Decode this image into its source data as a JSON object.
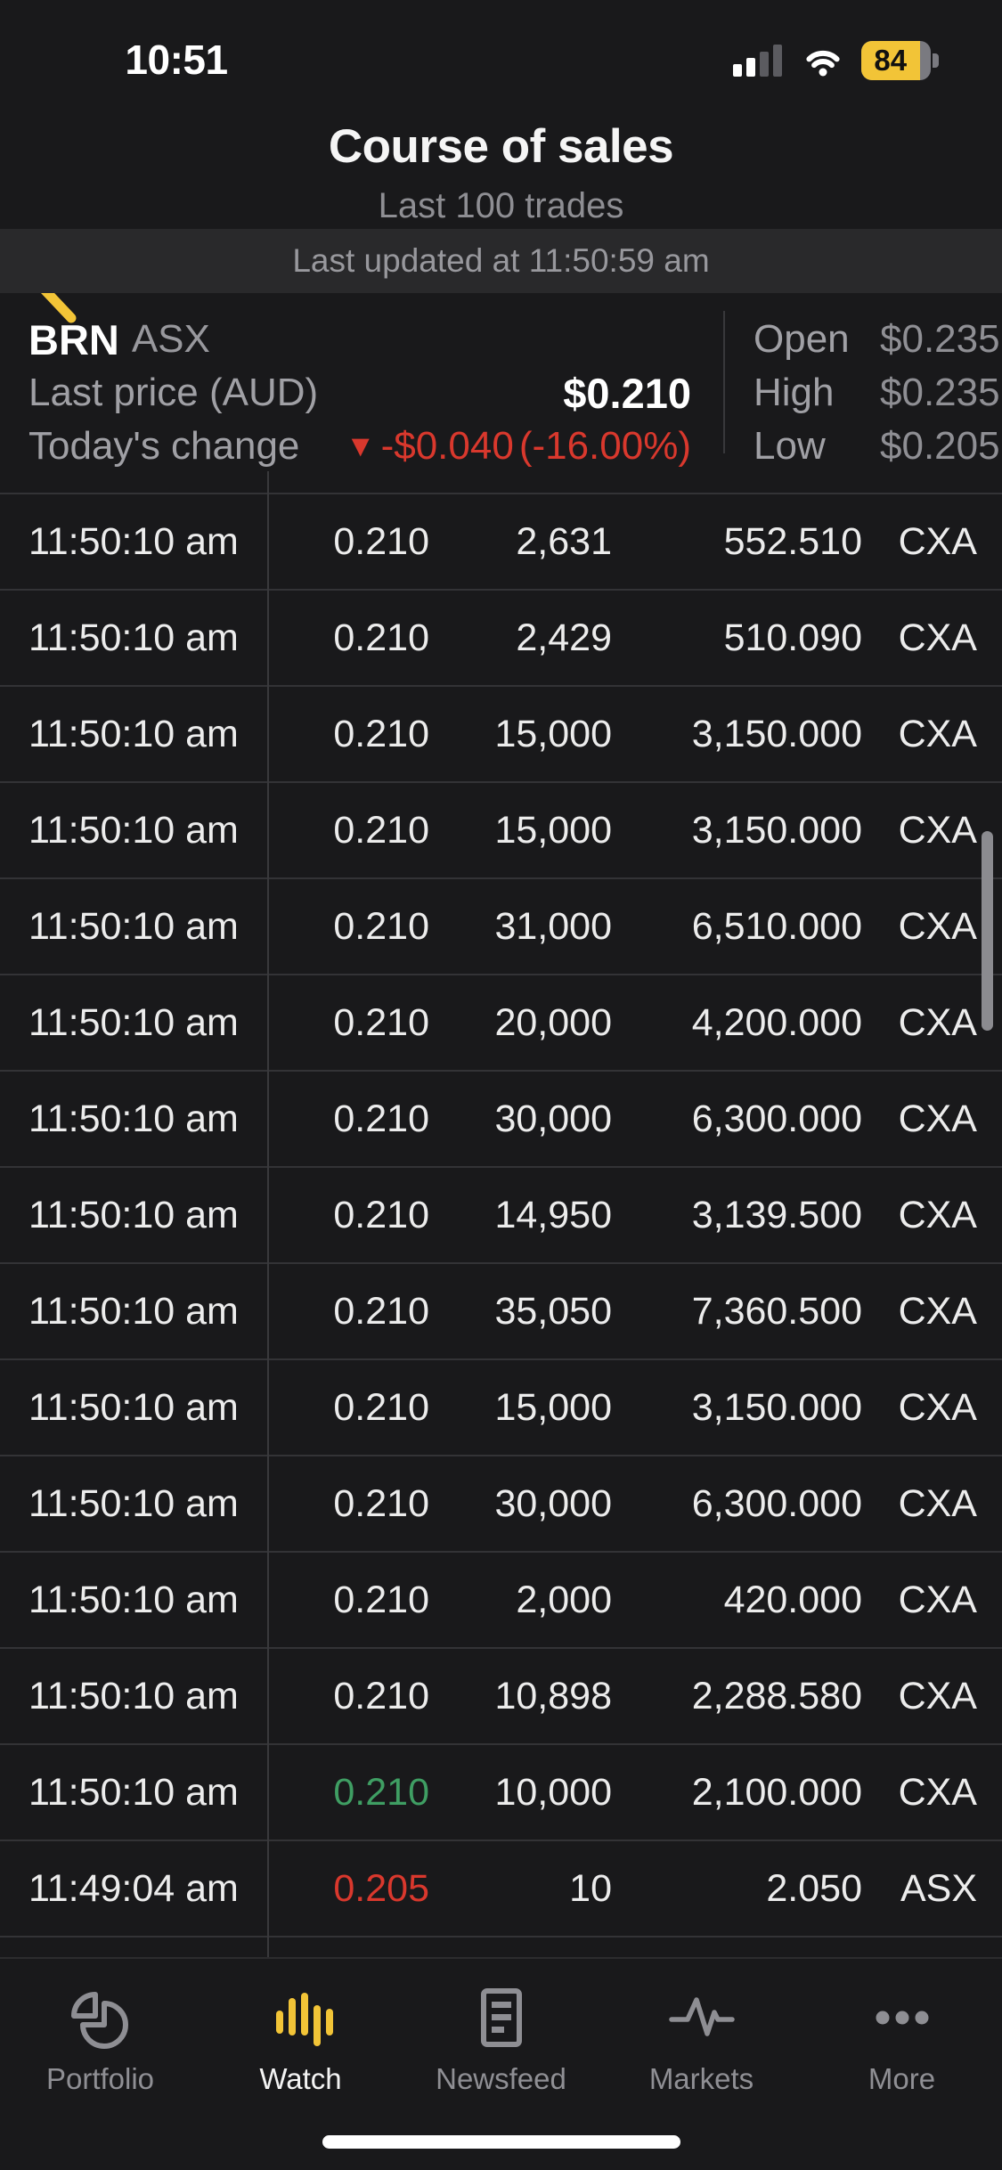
{
  "colors": {
    "accent": "#F2C437",
    "negative": "#D9382D",
    "positive": "#3F9E63",
    "background": "#19191B"
  },
  "status_bar": {
    "time": "10:51",
    "battery_percent": "84"
  },
  "header": {
    "title": "Course of sales",
    "subtitle": "Last 100 trades"
  },
  "updated_bar": {
    "text": "Last updated at 11:50:59 am"
  },
  "quote": {
    "symbol": "BRN",
    "exchange": "ASX",
    "last_price_label": "Last price (AUD)",
    "last_price": "$0.210",
    "change_label": "Today's change",
    "change_arrow": "▼",
    "change_value": "-$0.040",
    "change_pct": "(-16.00%)",
    "stats": [
      {
        "label": "Open",
        "value": "$0.235"
      },
      {
        "label": "High",
        "value": "$0.235"
      },
      {
        "label": "Low",
        "value": "$0.205"
      }
    ]
  },
  "trades": [
    {
      "time": "11:50:10 am",
      "price": "0.210",
      "volume": "2,631",
      "value": "552.510",
      "exchange": "CXA",
      "trend": null
    },
    {
      "time": "11:50:10 am",
      "price": "0.210",
      "volume": "2,429",
      "value": "510.090",
      "exchange": "CXA",
      "trend": null
    },
    {
      "time": "11:50:10 am",
      "price": "0.210",
      "volume": "15,000",
      "value": "3,150.000",
      "exchange": "CXA",
      "trend": null
    },
    {
      "time": "11:50:10 am",
      "price": "0.210",
      "volume": "15,000",
      "value": "3,150.000",
      "exchange": "CXA",
      "trend": null
    },
    {
      "time": "11:50:10 am",
      "price": "0.210",
      "volume": "31,000",
      "value": "6,510.000",
      "exchange": "CXA",
      "trend": null
    },
    {
      "time": "11:50:10 am",
      "price": "0.210",
      "volume": "20,000",
      "value": "4,200.000",
      "exchange": "CXA",
      "trend": null
    },
    {
      "time": "11:50:10 am",
      "price": "0.210",
      "volume": "30,000",
      "value": "6,300.000",
      "exchange": "CXA",
      "trend": null
    },
    {
      "time": "11:50:10 am",
      "price": "0.210",
      "volume": "14,950",
      "value": "3,139.500",
      "exchange": "CXA",
      "trend": null
    },
    {
      "time": "11:50:10 am",
      "price": "0.210",
      "volume": "35,050",
      "value": "7,360.500",
      "exchange": "CXA",
      "trend": null
    },
    {
      "time": "11:50:10 am",
      "price": "0.210",
      "volume": "15,000",
      "value": "3,150.000",
      "exchange": "CXA",
      "trend": null
    },
    {
      "time": "11:50:10 am",
      "price": "0.210",
      "volume": "30,000",
      "value": "6,300.000",
      "exchange": "CXA",
      "trend": null
    },
    {
      "time": "11:50:10 am",
      "price": "0.210",
      "volume": "2,000",
      "value": "420.000",
      "exchange": "CXA",
      "trend": null
    },
    {
      "time": "11:50:10 am",
      "price": "0.210",
      "volume": "10,898",
      "value": "2,288.580",
      "exchange": "CXA",
      "trend": null
    },
    {
      "time": "11:50:10 am",
      "price": "0.210",
      "volume": "10,000",
      "value": "2,100.000",
      "exchange": "CXA",
      "trend": "up"
    },
    {
      "time": "11:49:04 am",
      "price": "0.205",
      "volume": "10",
      "value": "2.050",
      "exchange": "ASX",
      "trend": "down"
    }
  ],
  "tab_bar": {
    "items": [
      {
        "label": "Portfolio",
        "icon": "pie-chart-icon",
        "active": false
      },
      {
        "label": "Watch",
        "icon": "waveform-bars-icon",
        "active": true
      },
      {
        "label": "Newsfeed",
        "icon": "newspaper-icon",
        "active": false
      },
      {
        "label": "Markets",
        "icon": "pulse-line-icon",
        "active": false
      },
      {
        "label": "More",
        "icon": "ellipsis-icon",
        "active": false
      }
    ]
  }
}
